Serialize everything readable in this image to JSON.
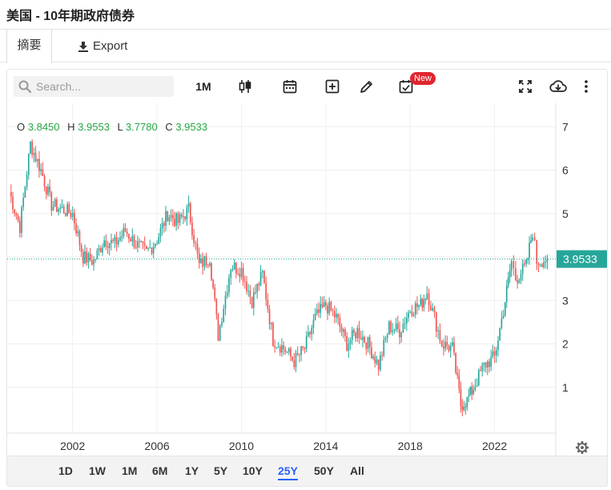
{
  "page": {
    "title": "美国 - 10年期政府债券"
  },
  "tabs": {
    "summary": "摘要",
    "export": "Export"
  },
  "toolbar": {
    "search_placeholder": "Search...",
    "interval": "1M",
    "new_badge": "New",
    "icons": [
      "search-icon",
      "candlestick-type-icon",
      "calendar-icon",
      "add-indicator-icon",
      "draw-pencil-icon",
      "alert-calendar-icon",
      "fullscreen-icon",
      "cloud-save-icon",
      "more-vertical-icon"
    ]
  },
  "ohlc": {
    "o_label": "O",
    "o": "3.8450",
    "h_label": "H",
    "h": "3.9553",
    "l_label": "L",
    "l": "3.7780",
    "c_label": "C",
    "c": "3.9533"
  },
  "colors": {
    "up": "#26a69a",
    "down": "#ef5350",
    "price_label": "#26a69a",
    "active_range": "#2962ff"
  },
  "ranges": [
    "1D",
    "1W",
    "1M",
    "6M",
    "1Y",
    "5Y",
    "10Y",
    "25Y",
    "50Y",
    "All"
  ],
  "active_range": "25Y",
  "chart_data": {
    "type": "candlestick",
    "title": "",
    "xlabel": "",
    "ylabel": "",
    "x_ticks": [
      "2002",
      "2006",
      "2010",
      "2014",
      "2018",
      "2022"
    ],
    "y_ticks": [
      "1",
      "2",
      "3",
      "4",
      "5",
      "6",
      "7"
    ],
    "ylim": [
      0,
      7.3
    ],
    "xlim": [
      1998.9,
      2024.9
    ],
    "grid": true,
    "last_price": "3.9533",
    "last_price_value": 3.9533,
    "series": [
      {
        "x": [
          1999.0,
          1999.5,
          2000.0,
          2000.5,
          2001.0,
          2001.5,
          2002.0,
          2002.5,
          2003.0,
          2003.5,
          2004.0,
          2004.5,
          2005.0,
          2005.5,
          2006.0,
          2006.5,
          2007.0,
          2007.5,
          2008.0,
          2008.5,
          2008.9,
          2009.5,
          2010.0,
          2010.5,
          2011.0,
          2011.5,
          2012.0,
          2012.5,
          2013.0,
          2013.5,
          2014.0,
          2014.5,
          2015.0,
          2015.5,
          2016.0,
          2016.5,
          2017.0,
          2017.5,
          2018.0,
          2018.5,
          2018.8,
          2019.5,
          2020.0,
          2020.4,
          2020.7,
          2021.0,
          2021.5,
          2022.0,
          2022.5,
          2022.8,
          2023.0,
          2023.5,
          2023.8,
          2024.0,
          2024.5
        ],
        "y": [
          5.5,
          4.7,
          6.6,
          6.0,
          5.2,
          5.1,
          5.0,
          4.0,
          3.9,
          4.4,
          4.3,
          4.6,
          4.3,
          4.1,
          4.4,
          5.0,
          4.8,
          5.1,
          3.8,
          4.0,
          2.2,
          3.8,
          3.7,
          3.0,
          3.6,
          2.1,
          1.9,
          1.6,
          1.9,
          2.6,
          2.9,
          2.6,
          2.0,
          2.3,
          2.0,
          1.5,
          2.4,
          2.3,
          2.8,
          2.9,
          3.2,
          2.0,
          1.9,
          0.6,
          0.7,
          1.0,
          1.5,
          1.7,
          3.0,
          3.9,
          3.5,
          3.8,
          4.6,
          3.9,
          3.95
        ]
      }
    ]
  }
}
